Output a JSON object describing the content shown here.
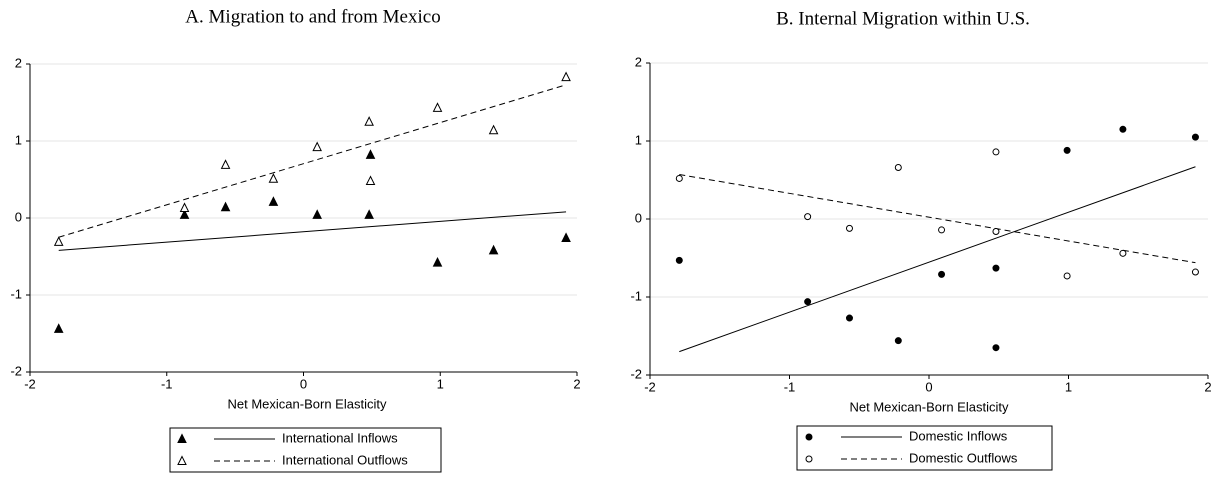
{
  "chart_data": [
    {
      "type": "scatter",
      "title": "A. Migration to and from Mexico",
      "x_label": "Net Mexican-Born Elasticity",
      "xlim": [
        -2,
        2
      ],
      "xticks": [
        -2,
        -1,
        0,
        1,
        2
      ],
      "ylim": [
        -2,
        2
      ],
      "yticks": [
        -2,
        -1,
        0,
        1,
        2
      ],
      "grid": true,
      "series": [
        {
          "name": "International Inflows",
          "color": "#000000",
          "marker": "triangle",
          "filled": true,
          "x": [
            -1.79,
            -0.87,
            -0.57,
            -0.22,
            0.1,
            0.48,
            0.49,
            0.98,
            1.39,
            1.92
          ],
          "values": [
            -1.44,
            0.04,
            0.14,
            0.21,
            0.04,
            0.04,
            0.82,
            -0.58,
            -0.42,
            -0.26
          ],
          "fit": {
            "x": [
              -1.79,
              1.92
            ],
            "y": [
              -0.42,
              0.08
            ],
            "dash": false
          }
        },
        {
          "name": "International Outflows",
          "color": "#000000",
          "marker": "triangle",
          "filled": false,
          "x": [
            -1.79,
            -0.87,
            -0.57,
            -0.22,
            0.1,
            0.48,
            0.49,
            0.98,
            1.39,
            1.92
          ],
          "values": [
            -0.31,
            0.13,
            0.69,
            0.51,
            0.92,
            1.25,
            0.48,
            1.43,
            1.14,
            1.83
          ],
          "fit": {
            "x": [
              -1.79,
              1.92
            ],
            "y": [
              -0.25,
              1.73
            ],
            "dash": true
          }
        }
      ]
    },
    {
      "type": "scatter",
      "title": "B. Internal Migration within U.S.",
      "x_label": "Net Mexican-Born Elasticity",
      "xlim": [
        -2,
        2
      ],
      "xticks": [
        -2,
        -1,
        0,
        1,
        2
      ],
      "ylim": [
        -2,
        2
      ],
      "yticks": [
        -2,
        -1,
        0,
        1,
        2
      ],
      "grid": true,
      "series": [
        {
          "name": "Domestic Inflows",
          "color": "#000000",
          "marker": "circle",
          "filled": true,
          "x": [
            -1.79,
            -0.87,
            -0.57,
            -0.22,
            0.09,
            0.48,
            0.48,
            0.99,
            1.39,
            1.91
          ],
          "values": [
            -0.53,
            -1.06,
            -1.27,
            -1.56,
            -0.71,
            -0.63,
            -1.65,
            0.88,
            1.15,
            1.05
          ],
          "fit": {
            "x": [
              -1.79,
              1.91
            ],
            "y": [
              -1.7,
              0.67
            ],
            "dash": false
          }
        },
        {
          "name": "Domestic Outflows",
          "color": "#000000",
          "marker": "circle",
          "filled": false,
          "x": [
            -1.79,
            -0.87,
            -0.57,
            -0.22,
            0.09,
            0.48,
            0.48,
            0.99,
            1.39,
            1.91
          ],
          "values": [
            0.52,
            0.03,
            -0.12,
            0.66,
            -0.14,
            -0.16,
            0.86,
            -0.73,
            -0.44,
            -0.68
          ],
          "fit": {
            "x": [
              -1.79,
              1.91
            ],
            "y": [
              0.57,
              -0.56
            ],
            "dash": true
          }
        }
      ]
    }
  ]
}
